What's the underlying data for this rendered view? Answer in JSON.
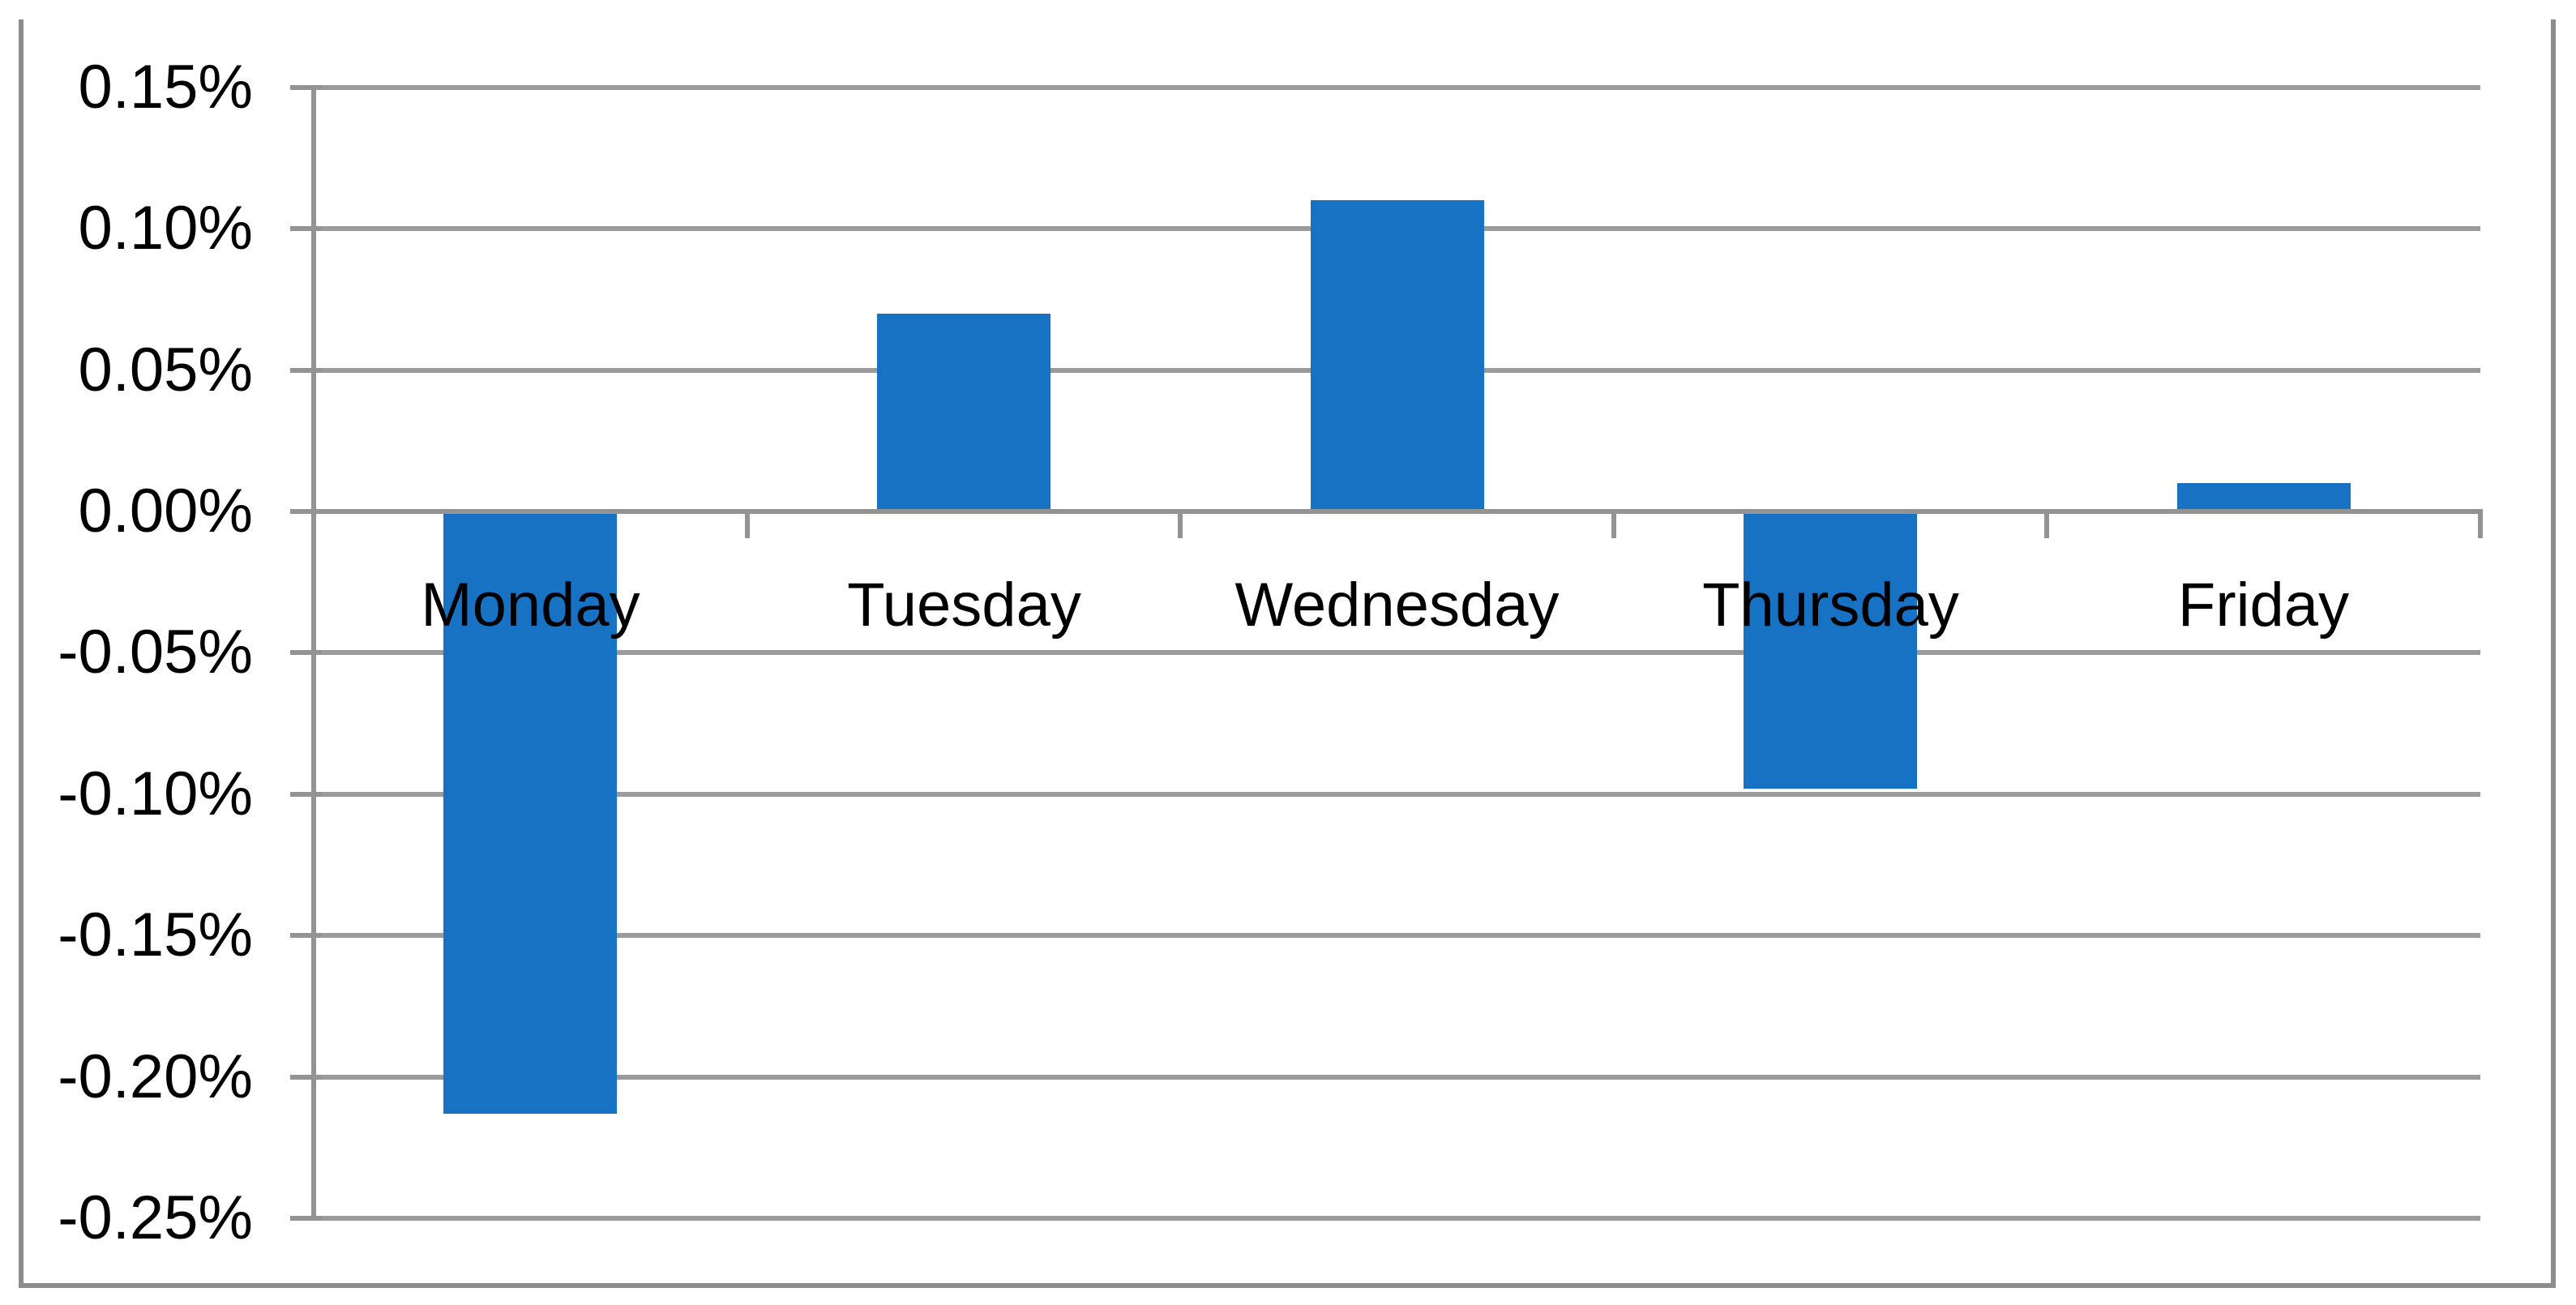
{
  "chart_data": {
    "type": "bar",
    "title": "",
    "xlabel": "",
    "ylabel": "",
    "categories": [
      "Monday",
      "Tuesday",
      "Wednesday",
      "Thursday",
      "Friday"
    ],
    "values": [
      -0.213,
      0.07,
      0.11,
      -0.098,
      0.01
    ],
    "value_unit": "percent",
    "ylim": [
      -0.25,
      0.15
    ],
    "y_tick_step": 0.05,
    "y_tick_labels": [
      "0.15%",
      "0.10%",
      "0.05%",
      "0.00%",
      "-0.05%",
      "-0.10%",
      "-0.15%",
      "-0.20%",
      "-0.25%"
    ],
    "grid": true,
    "legend": false,
    "series_count": 1,
    "colors": {
      "bar": "#1772C4",
      "gridline": "#9B9B9B",
      "axis_line": "#939393",
      "chart_border": "#8C8C8C",
      "text": "#000000",
      "background": "#FFFFFF"
    }
  }
}
